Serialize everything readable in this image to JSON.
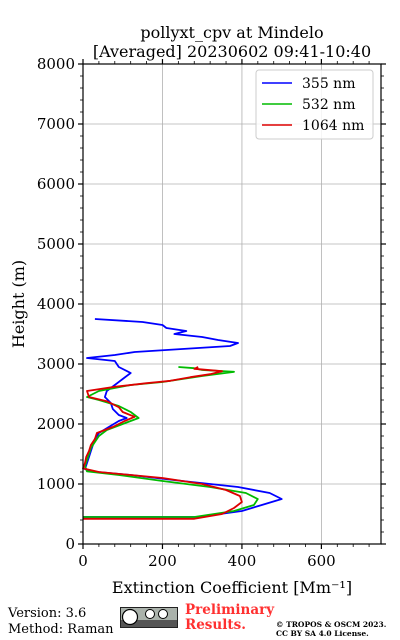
{
  "chart_data": {
    "type": "line",
    "title_line1": "pollyxt_cpv at Mindelo",
    "title_line2": "[Averaged] 20230602 09:41-10:40",
    "xlabel": "Extinction Coefficient [Mm⁻¹]",
    "ylabel": "Height (m)",
    "xlim": [
      0,
      750
    ],
    "ylim": [
      0,
      8000
    ],
    "xticks": [
      0,
      200,
      400,
      600
    ],
    "yticks": [
      0,
      1000,
      2000,
      3000,
      4000,
      5000,
      6000,
      7000,
      8000
    ],
    "grid": true,
    "legend_position": "top-right",
    "series": [
      {
        "name": "355 nm",
        "color": "#0000ff",
        "points": [
          [
            0,
            450
          ],
          [
            290,
            450
          ],
          [
            400,
            550
          ],
          [
            450,
            650
          ],
          [
            500,
            750
          ],
          [
            470,
            850
          ],
          [
            390,
            950
          ],
          [
            250,
            1050
          ],
          [
            120,
            1150
          ],
          [
            20,
            1210
          ],
          [
            5,
            1250
          ],
          [
            10,
            1350
          ],
          [
            15,
            1450
          ],
          [
            20,
            1550
          ],
          [
            25,
            1650
          ],
          [
            30,
            1750
          ],
          [
            40,
            1850
          ],
          [
            65,
            1950
          ],
          [
            90,
            2050
          ],
          [
            110,
            2100
          ],
          [
            90,
            2150
          ],
          [
            75,
            2250
          ],
          [
            70,
            2350
          ],
          [
            55,
            2450
          ],
          [
            60,
            2550
          ],
          [
            80,
            2650
          ],
          [
            100,
            2750
          ],
          [
            120,
            2850
          ],
          [
            90,
            2950
          ],
          [
            80,
            3050
          ],
          [
            10,
            3100
          ],
          [
            80,
            3150
          ],
          [
            130,
            3200
          ],
          [
            250,
            3250
          ],
          [
            370,
            3300
          ],
          [
            390,
            3350
          ],
          [
            340,
            3400
          ],
          [
            300,
            3450
          ],
          [
            230,
            3500
          ],
          [
            260,
            3550
          ],
          [
            210,
            3600
          ],
          [
            200,
            3650
          ],
          [
            150,
            3700
          ],
          [
            30,
            3750
          ]
        ]
      },
      {
        "name": "532 nm",
        "color": "#00bb00",
        "points": [
          [
            0,
            450
          ],
          [
            280,
            450
          ],
          [
            380,
            550
          ],
          [
            430,
            650
          ],
          [
            440,
            750
          ],
          [
            410,
            850
          ],
          [
            320,
            950
          ],
          [
            200,
            1050
          ],
          [
            90,
            1150
          ],
          [
            10,
            1210
          ],
          [
            5,
            1300
          ],
          [
            10,
            1400
          ],
          [
            15,
            1500
          ],
          [
            20,
            1600
          ],
          [
            30,
            1700
          ],
          [
            40,
            1800
          ],
          [
            60,
            1900
          ],
          [
            100,
            2000
          ],
          [
            140,
            2100
          ],
          [
            120,
            2200
          ],
          [
            90,
            2300
          ],
          [
            40,
            2400
          ],
          [
            10,
            2450
          ],
          [
            40,
            2550
          ],
          [
            120,
            2650
          ],
          [
            200,
            2700
          ],
          [
            250,
            2750
          ],
          [
            300,
            2800
          ],
          [
            380,
            2870
          ],
          [
            300,
            2900
          ],
          [
            280,
            2930
          ],
          [
            240,
            2950
          ]
        ]
      },
      {
        "name": "1064 nm",
        "color": "#dd0000",
        "points": [
          [
            0,
            420
          ],
          [
            280,
            420
          ],
          [
            350,
            500
          ],
          [
            380,
            600
          ],
          [
            400,
            700
          ],
          [
            395,
            800
          ],
          [
            360,
            900
          ],
          [
            300,
            1000
          ],
          [
            200,
            1100
          ],
          [
            40,
            1200
          ],
          [
            0,
            1260
          ],
          [
            5,
            1350
          ],
          [
            8,
            1450
          ],
          [
            15,
            1550
          ],
          [
            20,
            1650
          ],
          [
            30,
            1750
          ],
          [
            35,
            1850
          ],
          [
            75,
            1950
          ],
          [
            105,
            2050
          ],
          [
            130,
            2120
          ],
          [
            100,
            2200
          ],
          [
            90,
            2280
          ],
          [
            60,
            2380
          ],
          [
            15,
            2450
          ],
          [
            10,
            2550
          ],
          [
            80,
            2620
          ],
          [
            160,
            2680
          ],
          [
            220,
            2720
          ],
          [
            270,
            2780
          ],
          [
            320,
            2830
          ],
          [
            350,
            2880
          ],
          [
            280,
            2920
          ],
          [
            290,
            2950
          ]
        ]
      }
    ]
  },
  "footer": {
    "version": "Version: 3.6",
    "method": "Method: Raman",
    "preliminary_line1": "Preliminary",
    "preliminary_line2": "Results.",
    "copyright_line1": "© TROPOS & OSCM 2023.",
    "copyright_line2": "CC BY SA 4.0 License."
  }
}
